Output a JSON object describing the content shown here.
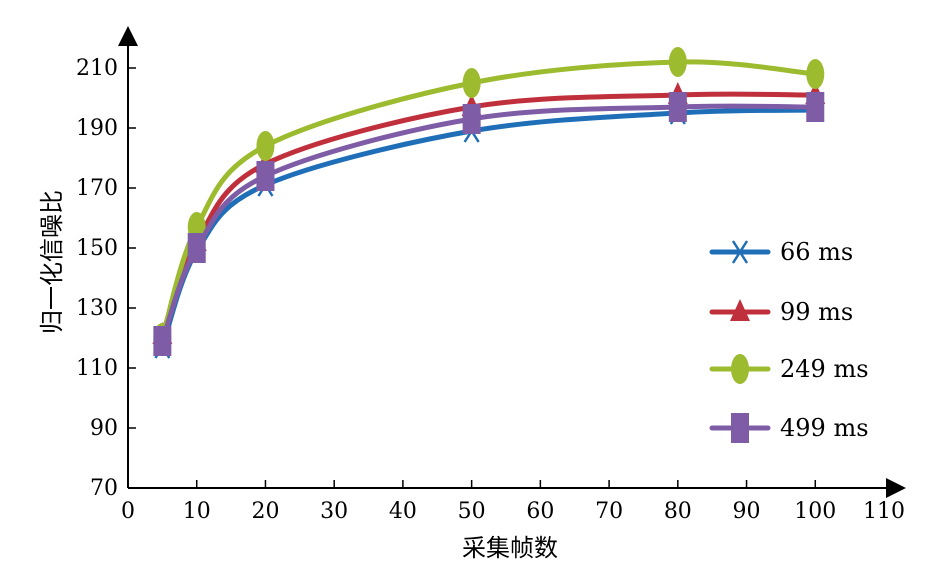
{
  "chart_data": {
    "type": "line",
    "title": "",
    "xlabel": "采集帧数",
    "ylabel": "归一化信噪比",
    "xlim": [
      0,
      110
    ],
    "ylim": [
      70,
      220
    ],
    "xticks": [
      0,
      10,
      20,
      30,
      40,
      50,
      60,
      70,
      80,
      90,
      100,
      110
    ],
    "yticks": [
      70,
      90,
      110,
      130,
      150,
      170,
      190,
      210
    ],
    "grid": false,
    "legend_position": "right",
    "x": [
      5,
      10,
      20,
      50,
      80,
      100
    ],
    "series": [
      {
        "name": "66 ms",
        "marker": "x",
        "color": "#1f6fb8",
        "values": [
          117,
          149,
          171,
          189,
          195,
          196
        ]
      },
      {
        "name": "99 ms",
        "marker": "triangle",
        "color": "#c0303c",
        "values": [
          121,
          152,
          178,
          197,
          201,
          201
        ]
      },
      {
        "name": "249 ms",
        "marker": "ellipse",
        "color": "#9cbb2e",
        "values": [
          120,
          157,
          184,
          205,
          212,
          208
        ]
      },
      {
        "name": "499 ms",
        "marker": "square",
        "color": "#7e5da6",
        "values": [
          119,
          150,
          174,
          193,
          197,
          197
        ]
      }
    ]
  }
}
